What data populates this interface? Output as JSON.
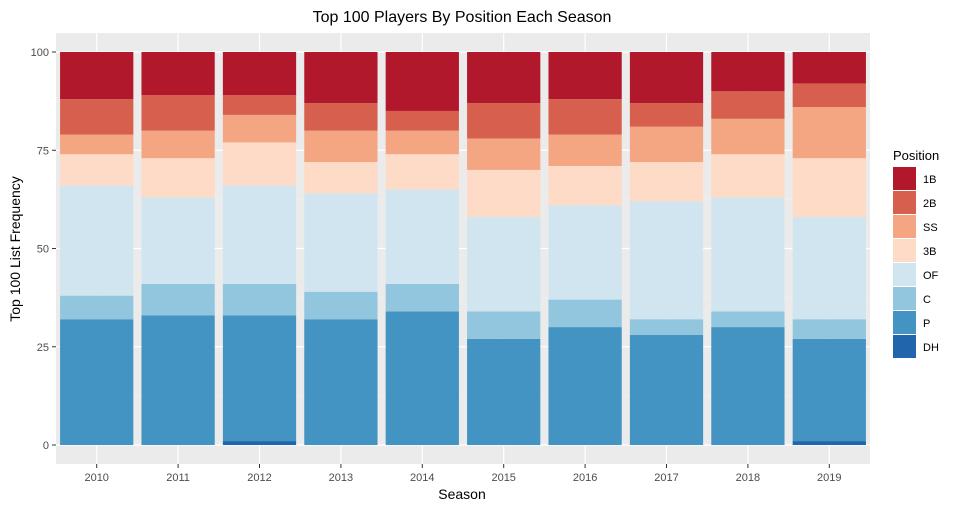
{
  "chart_data": {
    "type": "bar",
    "stacked": true,
    "title": "Top 100 Players By Position Each Season",
    "xlabel": "Season",
    "ylabel": "Top 100 List Frequency",
    "ylim": [
      0,
      100
    ],
    "y_ticks": [
      "0",
      "25",
      "50",
      "75",
      "100"
    ],
    "categories": [
      "2010",
      "2011",
      "2012",
      "2013",
      "2014",
      "2015",
      "2016",
      "2017",
      "2018",
      "2019"
    ],
    "legend": {
      "title": "Position",
      "placement": "right"
    },
    "grid": true,
    "colors": {
      "panel_background": "#ebebeb",
      "grid_major": "#ffffff",
      "grid_minor": "#f2f2f2"
    },
    "series": [
      {
        "name": "DH",
        "color": "#2166ac",
        "values": [
          0,
          0,
          1,
          0,
          0,
          0,
          0,
          0,
          0,
          1
        ]
      },
      {
        "name": "P",
        "color": "#4393c3",
        "values": [
          32,
          33,
          32,
          32,
          34,
          27,
          30,
          28,
          30,
          26
        ]
      },
      {
        "name": "C",
        "color": "#92c5de",
        "values": [
          6,
          8,
          8,
          7,
          7,
          7,
          7,
          4,
          4,
          5
        ]
      },
      {
        "name": "OF",
        "color": "#d1e5f0",
        "values": [
          28,
          22,
          25,
          25,
          24,
          24,
          24,
          30,
          29,
          26
        ]
      },
      {
        "name": "3B",
        "color": "#fddbc7",
        "values": [
          8,
          10,
          11,
          8,
          9,
          12,
          10,
          10,
          11,
          15
        ]
      },
      {
        "name": "SS",
        "color": "#f4a582",
        "values": [
          5,
          7,
          7,
          8,
          6,
          8,
          8,
          9,
          9,
          13
        ]
      },
      {
        "name": "2B",
        "color": "#d6604d",
        "values": [
          9,
          9,
          5,
          7,
          5,
          9,
          9,
          6,
          7,
          6
        ]
      },
      {
        "name": "1B",
        "color": "#b2182b",
        "values": [
          12,
          11,
          11,
          13,
          15,
          13,
          12,
          13,
          10,
          8
        ]
      }
    ],
    "legend_order": [
      "1B",
      "2B",
      "SS",
      "3B",
      "OF",
      "C",
      "P",
      "DH"
    ]
  }
}
